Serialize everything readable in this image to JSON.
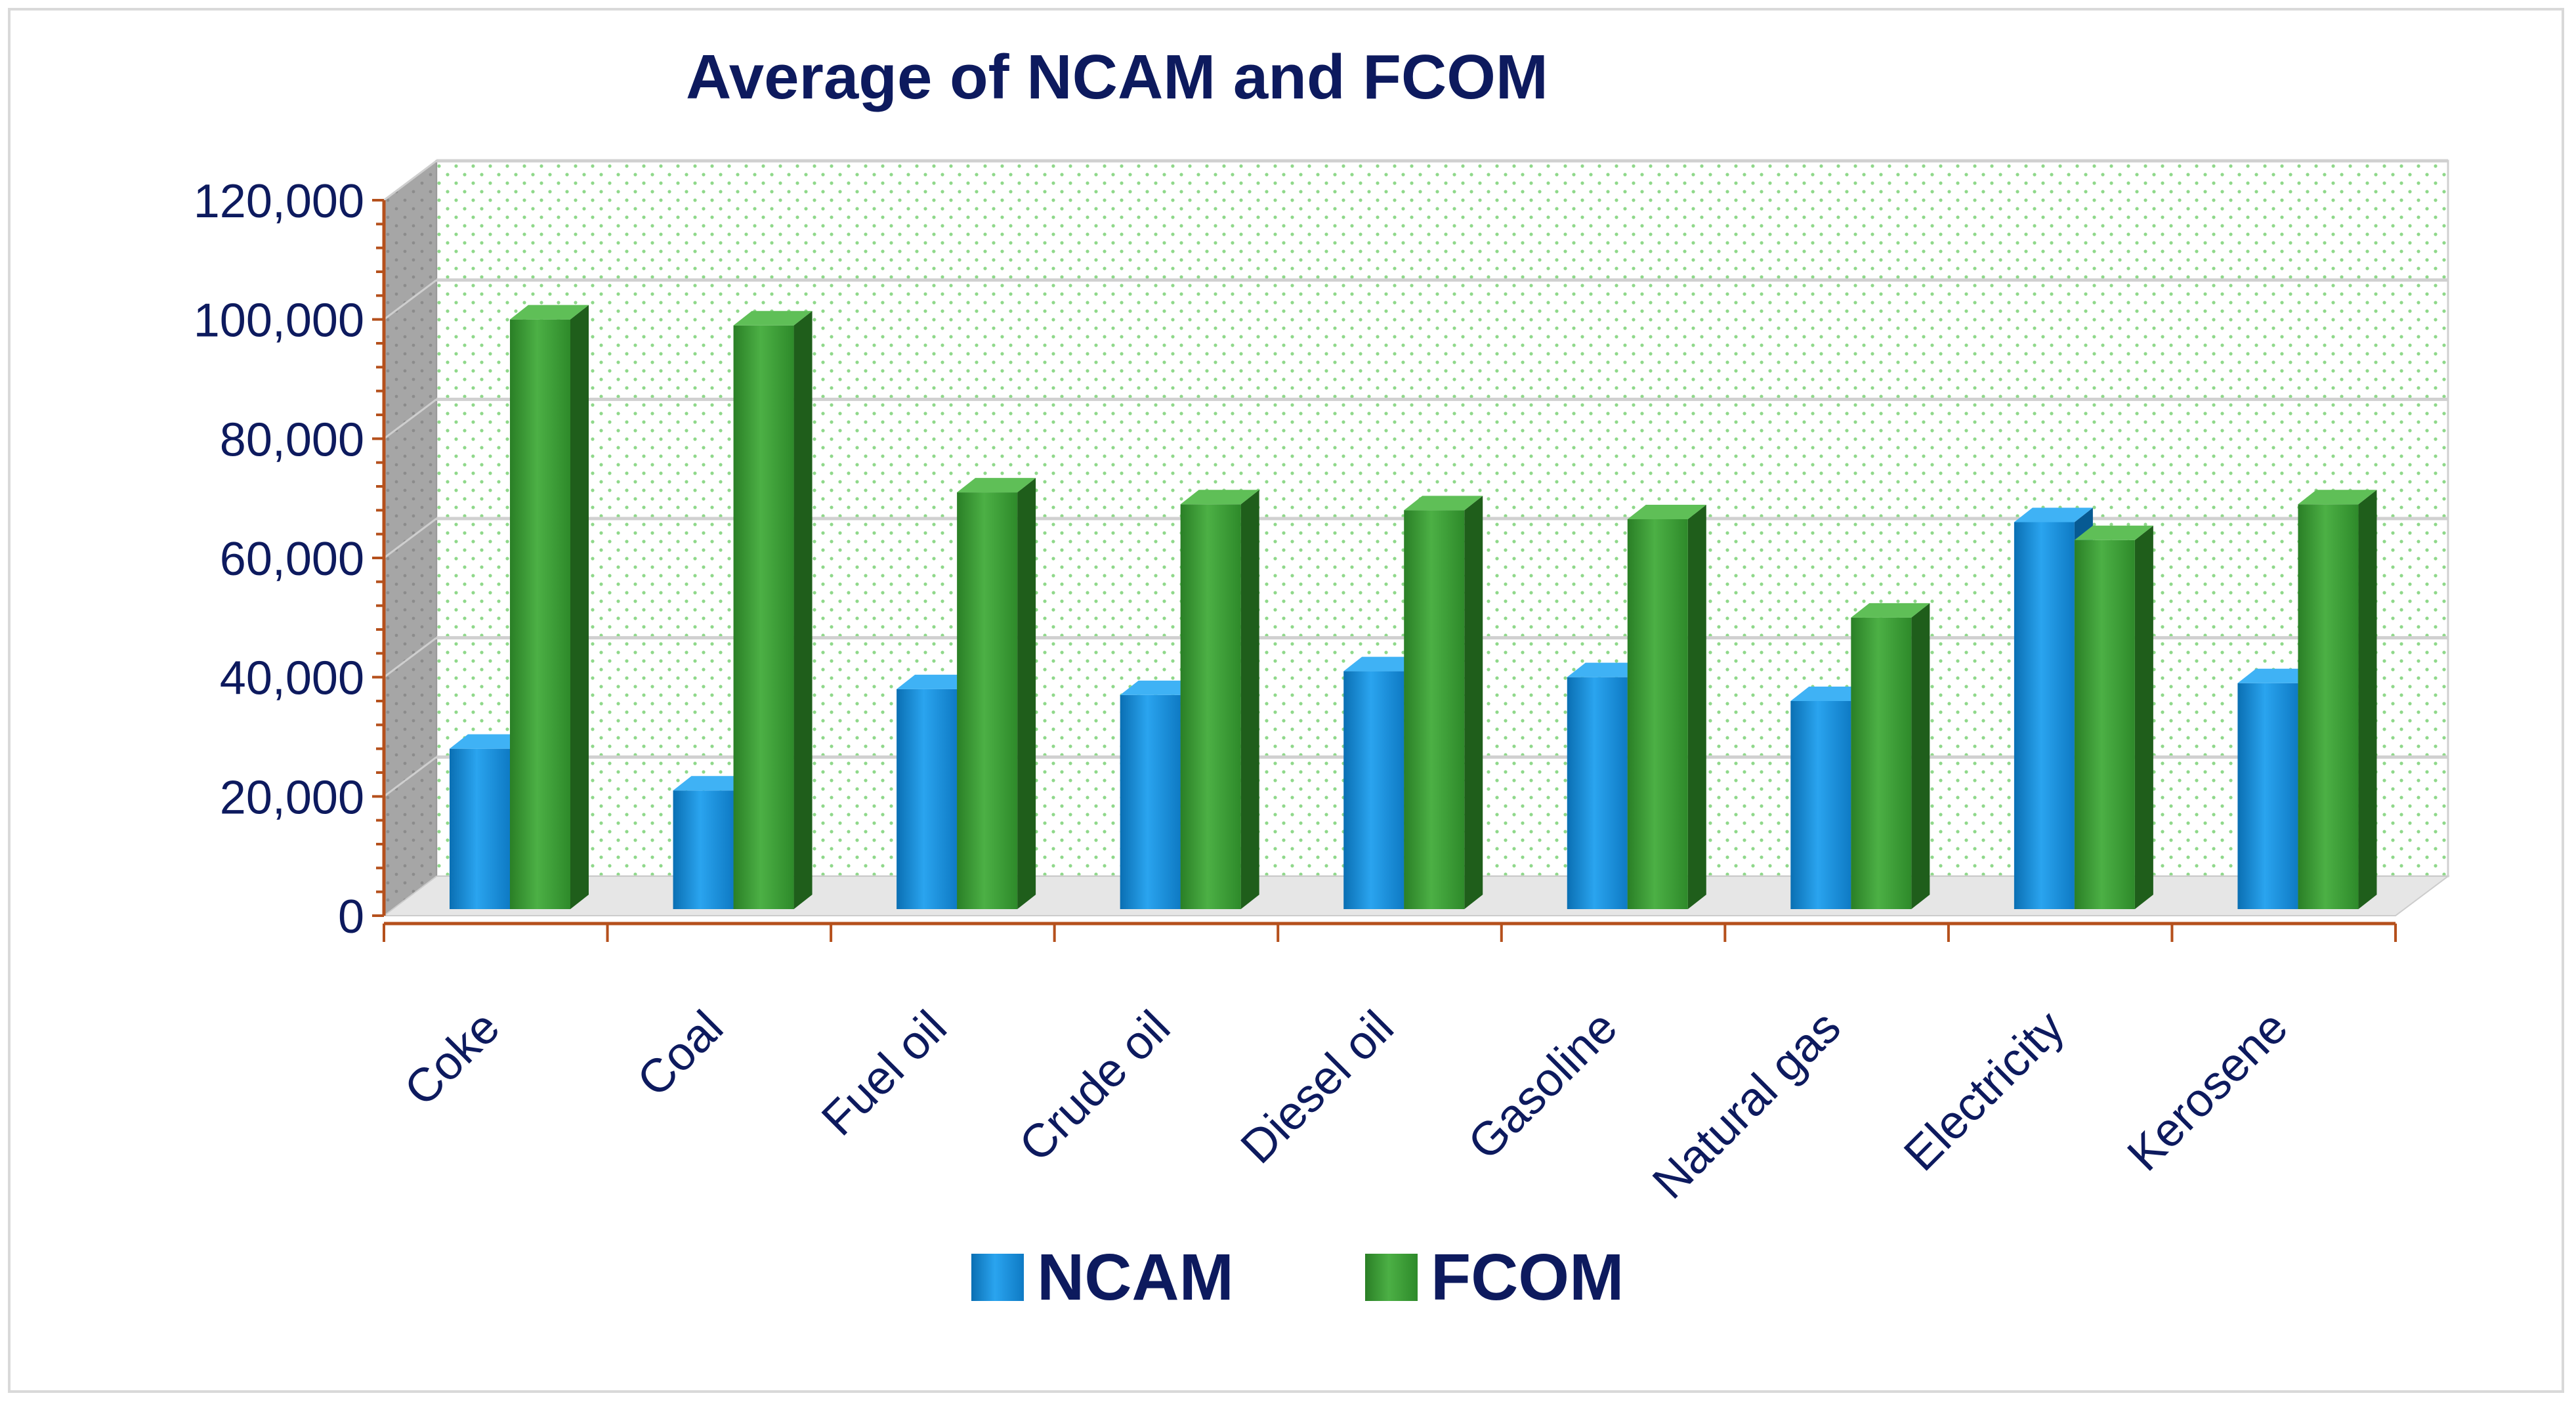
{
  "chart_data": {
    "type": "bar",
    "title": "Average of NCAM and FCOM",
    "categories": [
      "Coke",
      "Coal",
      "Fuel oil",
      "Crude oil",
      "Diesel oil",
      "Gasoline",
      "Natural gas",
      "Electricity",
      "Kerosene"
    ],
    "series": [
      {
        "name": "NCAM",
        "color": "#1a8fd8",
        "values": [
          28000,
          21000,
          38000,
          37000,
          41000,
          40000,
          36000,
          66000,
          39000
        ]
      },
      {
        "name": "FCOM",
        "color": "#3a9a34",
        "values": [
          100000,
          99000,
          71000,
          69000,
          68000,
          66500,
          50000,
          63000,
          69000
        ]
      }
    ],
    "ylim": [
      0,
      120000
    ],
    "yticks": [
      "0",
      "20,000",
      "40,000",
      "60,000",
      "80,000",
      "100,000",
      "120,000"
    ],
    "ytick_values": [
      0,
      20000,
      40000,
      60000,
      80000,
      100000,
      120000
    ],
    "xlabel": "",
    "ylabel": "",
    "legend_position": "bottom",
    "grid": true,
    "style": "3d-column"
  }
}
